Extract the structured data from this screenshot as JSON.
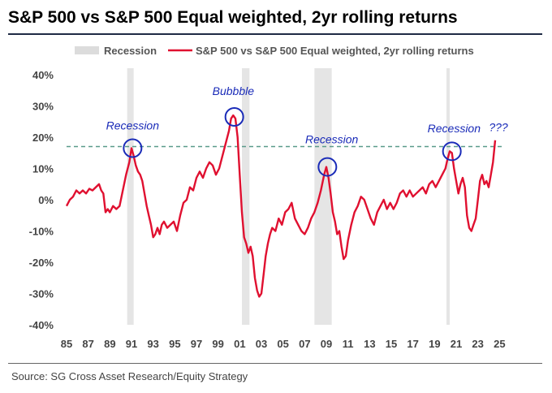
{
  "title": "S&P 500 vs S&P 500 Equal weighted, 2yr rolling returns",
  "source": "Source: SG Cross Asset Research/Equity Strategy",
  "chart_data": {
    "type": "line",
    "legend": [
      {
        "name": "Recession",
        "kind": "shaded-band",
        "color": "#dcdcdc"
      },
      {
        "name": "S&P 500 vs S&P 500 Equal weighted, 2yr rolling returns",
        "kind": "line",
        "color": "#e01030"
      }
    ],
    "legend_placement": "top",
    "x_tick_labels": [
      "85",
      "87",
      "89",
      "91",
      "93",
      "95",
      "97",
      "99",
      "01",
      "03",
      "05",
      "07",
      "09",
      "11",
      "13",
      "15",
      "17",
      "19",
      "21",
      "23",
      "25"
    ],
    "y_tick_labels": [
      "40%",
      "30%",
      "20%",
      "10%",
      "0%",
      "-10%",
      "-20%",
      "-30%",
      "-40%"
    ],
    "xlim": [
      1985,
      2025.5
    ],
    "ylim": [
      -40,
      40
    ],
    "y_unit": "%",
    "recessions": [
      [
        1990.6,
        1991.2
      ],
      [
        2001.2,
        2001.9
      ],
      [
        2007.9,
        2009.5
      ],
      [
        2020.1,
        2020.4
      ]
    ],
    "reference_line": {
      "y": 17,
      "style": "dashed",
      "color": "#5a9a8a"
    },
    "annotations": [
      {
        "text": "Recession",
        "x": 1991.1,
        "y": 22.5
      },
      {
        "text": "Bubbble",
        "x": 2000.4,
        "y": 33.5
      },
      {
        "text": "Recession",
        "x": 2009.5,
        "y": 18
      },
      {
        "text": "Recession",
        "x": 2020.8,
        "y": 21.5
      },
      {
        "text": "???",
        "x": 2024.9,
        "y": 22
      }
    ],
    "circles": [
      {
        "x": 1991.1,
        "y": 16.5
      },
      {
        "x": 2000.5,
        "y": 26.5
      },
      {
        "x": 2009.1,
        "y": 10.5
      },
      {
        "x": 2020.6,
        "y": 15.5
      }
    ],
    "series": [
      {
        "name": "S&P 500 vs S&P 500 Equal weighted, 2yr rolling returns",
        "points": [
          [
            1985.0,
            -2
          ],
          [
            1985.3,
            0
          ],
          [
            1985.6,
            1
          ],
          [
            1985.9,
            3
          ],
          [
            1986.2,
            2
          ],
          [
            1986.5,
            3
          ],
          [
            1986.8,
            2
          ],
          [
            1987.1,
            3.5
          ],
          [
            1987.4,
            3
          ],
          [
            1987.7,
            4
          ],
          [
            1988.0,
            5
          ],
          [
            1988.2,
            3
          ],
          [
            1988.4,
            2
          ],
          [
            1988.6,
            -4
          ],
          [
            1988.8,
            -3
          ],
          [
            1989.0,
            -4
          ],
          [
            1989.3,
            -2
          ],
          [
            1989.6,
            -3
          ],
          [
            1989.9,
            -2
          ],
          [
            1990.2,
            3
          ],
          [
            1990.5,
            8
          ],
          [
            1990.8,
            12
          ],
          [
            1991.0,
            16.5
          ],
          [
            1991.2,
            14
          ],
          [
            1991.4,
            11
          ],
          [
            1991.6,
            9
          ],
          [
            1991.8,
            8
          ],
          [
            1992.0,
            6
          ],
          [
            1992.2,
            2
          ],
          [
            1992.4,
            -2
          ],
          [
            1992.6,
            -5
          ],
          [
            1992.8,
            -8
          ],
          [
            1993.0,
            -12
          ],
          [
            1993.2,
            -11
          ],
          [
            1993.4,
            -9
          ],
          [
            1993.6,
            -11
          ],
          [
            1993.8,
            -8
          ],
          [
            1994.0,
            -7
          ],
          [
            1994.3,
            -9
          ],
          [
            1994.6,
            -8
          ],
          [
            1994.9,
            -7
          ],
          [
            1995.2,
            -10
          ],
          [
            1995.5,
            -5
          ],
          [
            1995.8,
            -1
          ],
          [
            1996.1,
            0
          ],
          [
            1996.4,
            4
          ],
          [
            1996.7,
            3
          ],
          [
            1997.0,
            7
          ],
          [
            1997.3,
            9
          ],
          [
            1997.6,
            7
          ],
          [
            1997.9,
            10
          ],
          [
            1998.2,
            12
          ],
          [
            1998.5,
            11
          ],
          [
            1998.8,
            8
          ],
          [
            1999.1,
            10
          ],
          [
            1999.4,
            14
          ],
          [
            1999.7,
            18
          ],
          [
            2000.0,
            22
          ],
          [
            2000.2,
            26
          ],
          [
            2000.4,
            27
          ],
          [
            2000.6,
            26
          ],
          [
            2000.8,
            20
          ],
          [
            2001.0,
            8
          ],
          [
            2001.2,
            -4
          ],
          [
            2001.4,
            -12
          ],
          [
            2001.6,
            -14
          ],
          [
            2001.8,
            -17
          ],
          [
            2002.0,
            -15
          ],
          [
            2002.2,
            -18
          ],
          [
            2002.4,
            -25
          ],
          [
            2002.6,
            -29
          ],
          [
            2002.8,
            -31
          ],
          [
            2003.0,
            -30
          ],
          [
            2003.2,
            -24
          ],
          [
            2003.4,
            -18
          ],
          [
            2003.6,
            -14
          ],
          [
            2003.8,
            -11
          ],
          [
            2004.0,
            -9
          ],
          [
            2004.3,
            -10
          ],
          [
            2004.6,
            -6
          ],
          [
            2004.9,
            -8
          ],
          [
            2005.2,
            -4
          ],
          [
            2005.5,
            -3
          ],
          [
            2005.8,
            -1
          ],
          [
            2006.1,
            -6
          ],
          [
            2006.4,
            -8
          ],
          [
            2006.7,
            -10
          ],
          [
            2007.0,
            -11
          ],
          [
            2007.3,
            -9
          ],
          [
            2007.6,
            -6
          ],
          [
            2007.9,
            -4
          ],
          [
            2008.2,
            -1
          ],
          [
            2008.5,
            3
          ],
          [
            2008.8,
            8
          ],
          [
            2009.0,
            10.5
          ],
          [
            2009.2,
            7
          ],
          [
            2009.4,
            2
          ],
          [
            2009.6,
            -4
          ],
          [
            2009.8,
            -7
          ],
          [
            2010.0,
            -11
          ],
          [
            2010.2,
            -10
          ],
          [
            2010.4,
            -15
          ],
          [
            2010.6,
            -19
          ],
          [
            2010.8,
            -18
          ],
          [
            2011.0,
            -13
          ],
          [
            2011.3,
            -8
          ],
          [
            2011.6,
            -4
          ],
          [
            2011.9,
            -2
          ],
          [
            2012.2,
            1
          ],
          [
            2012.5,
            0
          ],
          [
            2012.8,
            -3
          ],
          [
            2013.1,
            -6
          ],
          [
            2013.4,
            -8
          ],
          [
            2013.7,
            -4
          ],
          [
            2014.0,
            -2
          ],
          [
            2014.3,
            0
          ],
          [
            2014.6,
            -3
          ],
          [
            2014.9,
            -1
          ],
          [
            2015.2,
            -3
          ],
          [
            2015.5,
            -1
          ],
          [
            2015.8,
            2
          ],
          [
            2016.1,
            3
          ],
          [
            2016.4,
            1
          ],
          [
            2016.7,
            3
          ],
          [
            2017.0,
            1
          ],
          [
            2017.3,
            2
          ],
          [
            2017.6,
            3
          ],
          [
            2017.9,
            4
          ],
          [
            2018.2,
            2
          ],
          [
            2018.5,
            5
          ],
          [
            2018.8,
            6
          ],
          [
            2019.1,
            4
          ],
          [
            2019.4,
            6
          ],
          [
            2019.7,
            8
          ],
          [
            2020.0,
            10
          ],
          [
            2020.2,
            13
          ],
          [
            2020.4,
            15.5
          ],
          [
            2020.6,
            15
          ],
          [
            2020.8,
            10
          ],
          [
            2021.0,
            6
          ],
          [
            2021.2,
            2
          ],
          [
            2021.4,
            5
          ],
          [
            2021.6,
            7
          ],
          [
            2021.8,
            4
          ],
          [
            2022.0,
            -5
          ],
          [
            2022.2,
            -9
          ],
          [
            2022.4,
            -10
          ],
          [
            2022.6,
            -8
          ],
          [
            2022.8,
            -6
          ],
          [
            2023.0,
            0
          ],
          [
            2023.2,
            6
          ],
          [
            2023.4,
            8
          ],
          [
            2023.6,
            5
          ],
          [
            2023.8,
            6
          ],
          [
            2024.0,
            4
          ],
          [
            2024.2,
            8
          ],
          [
            2024.4,
            12
          ],
          [
            2024.6,
            19
          ]
        ]
      }
    ]
  }
}
